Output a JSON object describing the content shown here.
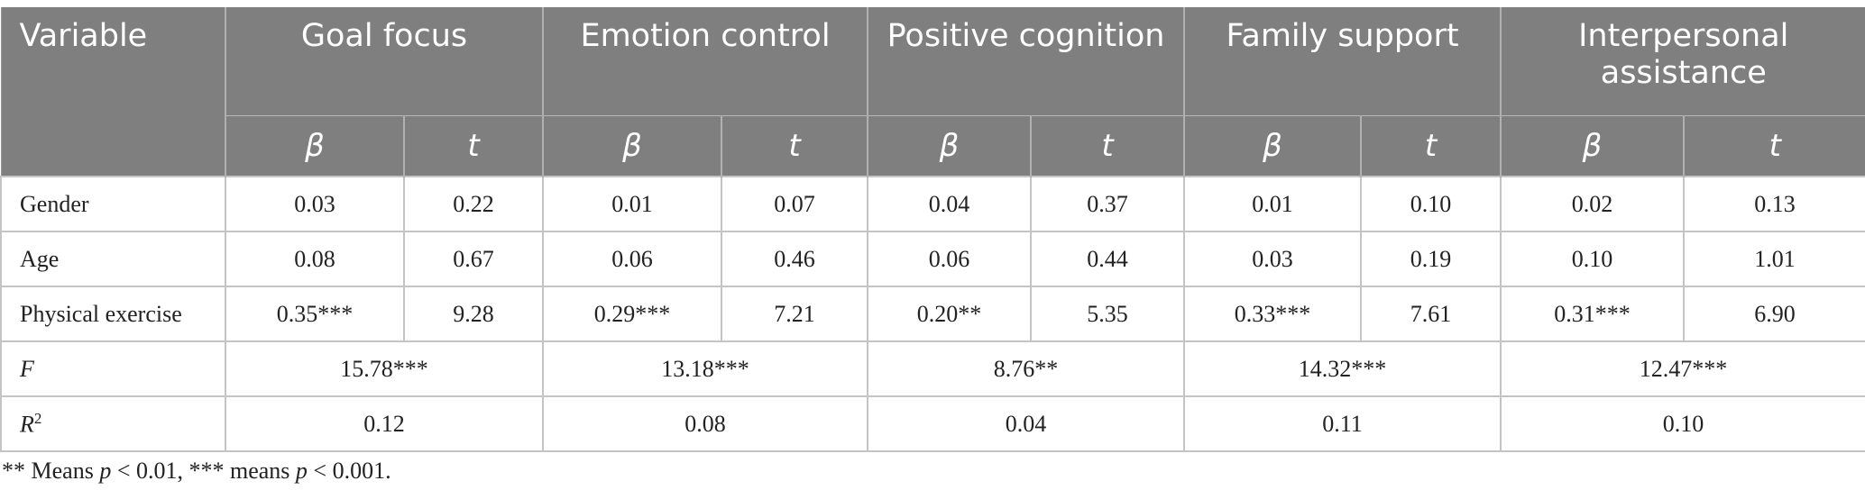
{
  "table": {
    "header": {
      "variable": "Variable",
      "groups": [
        "Goal focus",
        "Emotion control",
        "Positive cognition",
        "Family support",
        "Interpersonal assistance"
      ],
      "beta": "β",
      "t": "t"
    },
    "rows": [
      {
        "label": "Gender",
        "cells": [
          "0.03",
          "0.22",
          "0.01",
          "0.07",
          "0.04",
          "0.37",
          "0.01",
          "0.10",
          "0.02",
          "0.13"
        ]
      },
      {
        "label": "Age",
        "cells": [
          "0.08",
          "0.67",
          "0.06",
          "0.46",
          "0.06",
          "0.44",
          "0.03",
          "0.19",
          "0.10",
          "1.01"
        ]
      },
      {
        "label": "Physical exercise",
        "cells": [
          "0.35***",
          "9.28",
          "0.29***",
          "7.21",
          "0.20**",
          "5.35",
          "0.33***",
          "7.61",
          "0.31***",
          "6.90"
        ]
      }
    ],
    "f_row": {
      "label": "F",
      "cells": [
        "15.78***",
        "13.18***",
        "8.76**",
        "14.32***",
        "12.47***"
      ]
    },
    "r2_row": {
      "label": "R",
      "label_sup": "2",
      "cells": [
        "0.12",
        "0.08",
        "0.04",
        "0.11",
        "0.10"
      ]
    }
  },
  "note": {
    "part1": "** Means ",
    "p1": "p",
    "part2": " < 0.01, *** means ",
    "p2": "p",
    "part3": " < 0.001."
  }
}
